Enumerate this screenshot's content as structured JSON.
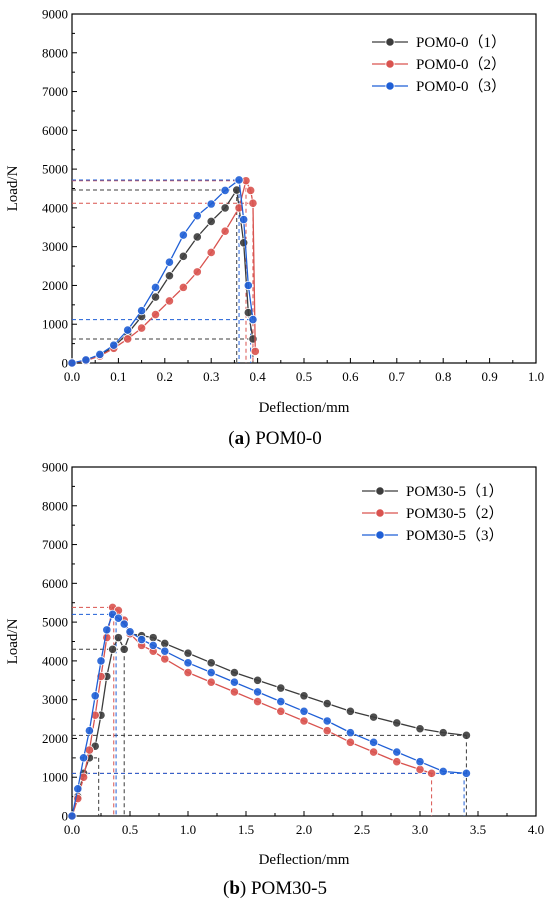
{
  "chart_data": [
    {
      "type": "line",
      "caption_letter": "a",
      "caption_text": "POM0-0",
      "caption_prefix": "(",
      "caption_suffix": ") ",
      "xlabel": "Deflection/mm",
      "ylabel": "Load/N",
      "xlim": [
        0,
        1.0
      ],
      "ylim": [
        0,
        9000
      ],
      "xticks": [
        "0.0",
        "0.1",
        "0.2",
        "0.3",
        "0.4",
        "0.5",
        "0.6",
        "0.7",
        "0.8",
        "0.9",
        "1.0"
      ],
      "yticks": [
        "0",
        "1000",
        "2000",
        "3000",
        "4000",
        "5000",
        "6000",
        "7000",
        "8000",
        "9000"
      ],
      "legend_position": "top-right",
      "grid": false,
      "series": [
        {
          "name": "POM0-0（1）",
          "color": "#3c3c3c",
          "x": [
            0.0,
            0.03,
            0.06,
            0.09,
            0.12,
            0.15,
            0.18,
            0.21,
            0.24,
            0.27,
            0.3,
            0.33,
            0.355,
            0.37,
            0.38,
            0.39
          ],
          "y": [
            0,
            60,
            200,
            420,
            760,
            1200,
            1700,
            2250,
            2750,
            3250,
            3650,
            4000,
            4460,
            3100,
            1300,
            620
          ]
        },
        {
          "name": "POM0-0（2）",
          "color": "#d9534f",
          "x": [
            0.0,
            0.03,
            0.06,
            0.09,
            0.12,
            0.15,
            0.18,
            0.21,
            0.24,
            0.27,
            0.3,
            0.33,
            0.36,
            0.375,
            0.385,
            0.39,
            0.395
          ],
          "y": [
            0,
            60,
            180,
            380,
            620,
            900,
            1250,
            1600,
            1950,
            2350,
            2850,
            3400,
            4000,
            4700,
            4450,
            4120,
            300
          ]
        },
        {
          "name": "POM0-0（3）",
          "color": "#1f5fd6",
          "x": [
            0.0,
            0.03,
            0.06,
            0.09,
            0.12,
            0.15,
            0.18,
            0.21,
            0.24,
            0.27,
            0.3,
            0.33,
            0.36,
            0.37,
            0.38,
            0.39
          ],
          "y": [
            0,
            80,
            220,
            460,
            850,
            1350,
            1950,
            2600,
            3300,
            3800,
            4100,
            4450,
            4720,
            3700,
            2000,
            1120
          ]
        }
      ],
      "guide_lines": [
        {
          "series": 0,
          "x": 0.355,
          "y": 4460
        },
        {
          "series": 0,
          "x": 0.39,
          "y": 620
        },
        {
          "series": 1,
          "x": 0.375,
          "y": 4700
        },
        {
          "series": 1,
          "x": 0.39,
          "y": 4120
        },
        {
          "series": 2,
          "x": 0.36,
          "y": 4720
        },
        {
          "series": 2,
          "x": 0.385,
          "y": 1120
        }
      ]
    },
    {
      "type": "line",
      "caption_letter": "b",
      "caption_text": "POM30-5",
      "caption_prefix": "(",
      "caption_suffix": ") ",
      "xlabel": "Deflection/mm",
      "ylabel": "Load/N",
      "xlim": [
        0,
        4.0
      ],
      "ylim": [
        0,
        9000
      ],
      "xticks": [
        "0.0",
        "0.5",
        "1.0",
        "1.5",
        "2.0",
        "2.5",
        "3.0",
        "3.5",
        "4.0"
      ],
      "yticks": [
        "0",
        "1000",
        "2000",
        "3000",
        "4000",
        "5000",
        "6000",
        "7000",
        "8000",
        "9000"
      ],
      "legend_position": "top-right",
      "grid": false,
      "series": [
        {
          "name": "POM30-5（1）",
          "color": "#3c3c3c",
          "x": [
            0.0,
            0.05,
            0.1,
            0.15,
            0.2,
            0.25,
            0.3,
            0.35,
            0.4,
            0.45,
            0.5,
            0.6,
            0.7,
            0.8,
            1.0,
            1.2,
            1.4,
            1.6,
            1.8,
            2.0,
            2.2,
            2.4,
            2.6,
            2.8,
            3.0,
            3.2,
            3.4
          ],
          "y": [
            0,
            500,
            1100,
            1500,
            1800,
            2600,
            3600,
            4300,
            4600,
            4300,
            4700,
            4650,
            4600,
            4450,
            4200,
            3950,
            3700,
            3500,
            3300,
            3100,
            2900,
            2700,
            2550,
            2400,
            2250,
            2150,
            2080
          ]
        },
        {
          "name": "POM30-5（2）",
          "color": "#d9534f",
          "x": [
            0.0,
            0.05,
            0.1,
            0.15,
            0.2,
            0.25,
            0.3,
            0.35,
            0.4,
            0.45,
            0.5,
            0.6,
            0.7,
            0.8,
            1.0,
            1.2,
            1.4,
            1.6,
            1.8,
            2.0,
            2.2,
            2.4,
            2.6,
            2.8,
            3.0,
            3.1
          ],
          "y": [
            0,
            450,
            1000,
            1700,
            2600,
            3600,
            4600,
            5380,
            5300,
            5050,
            4700,
            4400,
            4250,
            4050,
            3700,
            3450,
            3200,
            2950,
            2700,
            2450,
            2200,
            1900,
            1650,
            1400,
            1200,
            1100
          ]
        },
        {
          "name": "POM30-5（3）",
          "color": "#1f5fd6",
          "x": [
            0.0,
            0.05,
            0.1,
            0.15,
            0.2,
            0.25,
            0.3,
            0.35,
            0.4,
            0.45,
            0.5,
            0.6,
            0.7,
            0.8,
            1.0,
            1.2,
            1.4,
            1.6,
            1.8,
            2.0,
            2.2,
            2.4,
            2.6,
            2.8,
            3.0,
            3.2,
            3.4
          ],
          "y": [
            0,
            700,
            1500,
            2200,
            3100,
            4000,
            4800,
            5200,
            5100,
            4950,
            4750,
            4550,
            4400,
            4250,
            3950,
            3700,
            3450,
            3200,
            2950,
            2700,
            2450,
            2150,
            1900,
            1650,
            1400,
            1150,
            1100
          ]
        }
      ],
      "guide_lines": [
        {
          "series": 0,
          "x": 0.45,
          "y": 4300
        },
        {
          "series": 0,
          "x": 3.4,
          "y": 2080
        },
        {
          "series": 0,
          "x": 0.23,
          "y": 1500
        },
        {
          "series": 1,
          "x": 0.36,
          "y": 5380
        },
        {
          "series": 1,
          "x": 3.1,
          "y": 1100
        },
        {
          "series": 2,
          "x": 0.38,
          "y": 5200
        },
        {
          "series": 2,
          "x": 3.38,
          "y": 1100
        }
      ]
    }
  ]
}
